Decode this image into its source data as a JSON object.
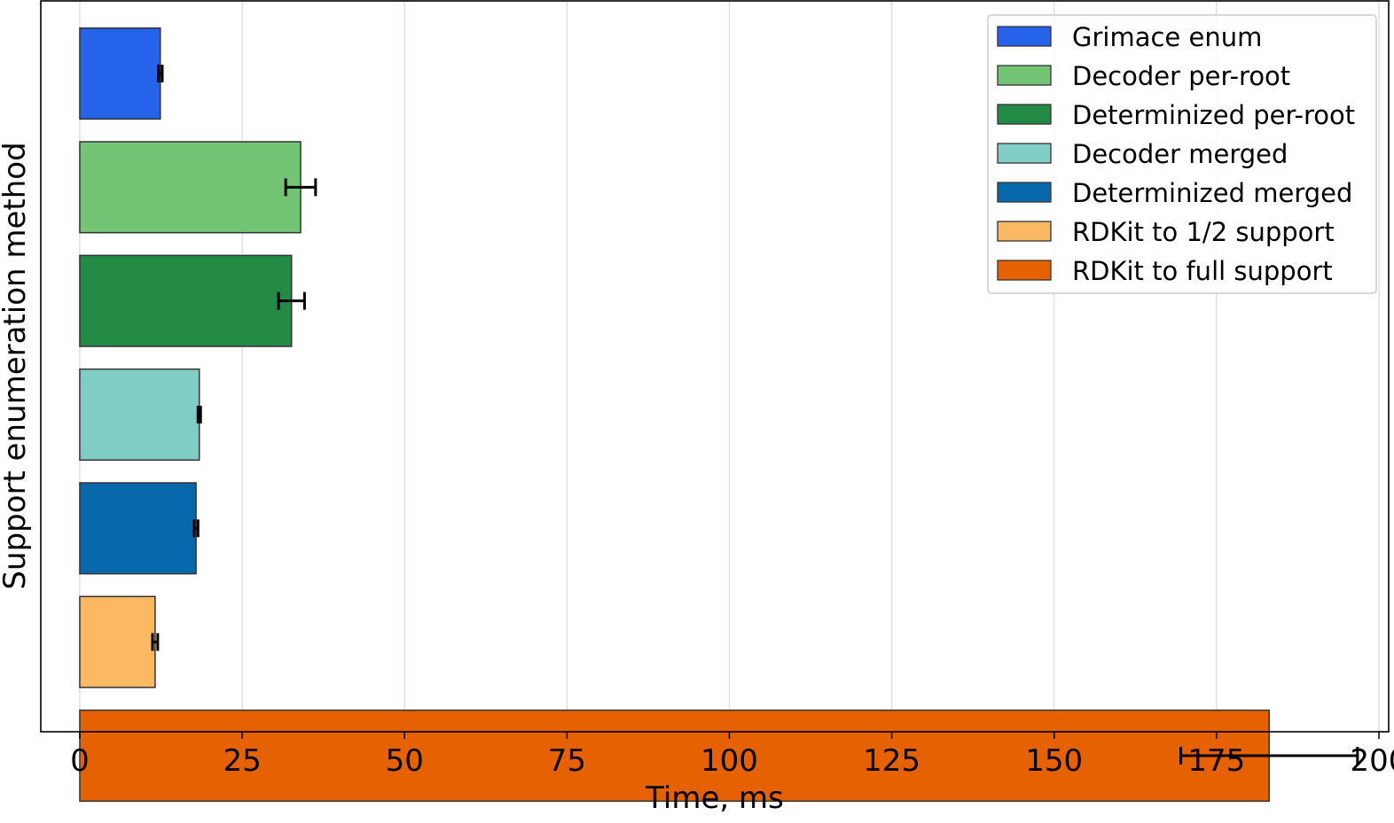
{
  "chart_data": {
    "type": "bar",
    "orientation": "horizontal",
    "title": "",
    "xlabel": "Time, ms",
    "ylabel": "Support enumeration method",
    "xlim": [
      -6,
      201.5
    ],
    "xticks": [
      0,
      25,
      50,
      75,
      100,
      125,
      150,
      175,
      200
    ],
    "grid": "vertical",
    "legend_position": "top-right",
    "series": [
      {
        "name": "Grimace enum",
        "value": 12.4,
        "error": 0.3,
        "color": "#2563eb"
      },
      {
        "name": "Decoder per-root",
        "value": 34.0,
        "error": 2.3,
        "color": "#74c476"
      },
      {
        "name": "Determinized per-root",
        "value": 32.6,
        "error": 2.0,
        "color": "#238b45"
      },
      {
        "name": "Decoder merged",
        "value": 18.4,
        "error": 0.2,
        "color": "#7fcdc4"
      },
      {
        "name": "Determinized merged",
        "value": 17.9,
        "error": 0.3,
        "color": "#0868ac"
      },
      {
        "name": "RDKit to 1/2 support",
        "value": 11.6,
        "error": 0.4,
        "color": "#fdb863"
      },
      {
        "name": "RDKit to full support",
        "value": 183.1,
        "error": 13.6,
        "color": "#e66101"
      }
    ]
  }
}
